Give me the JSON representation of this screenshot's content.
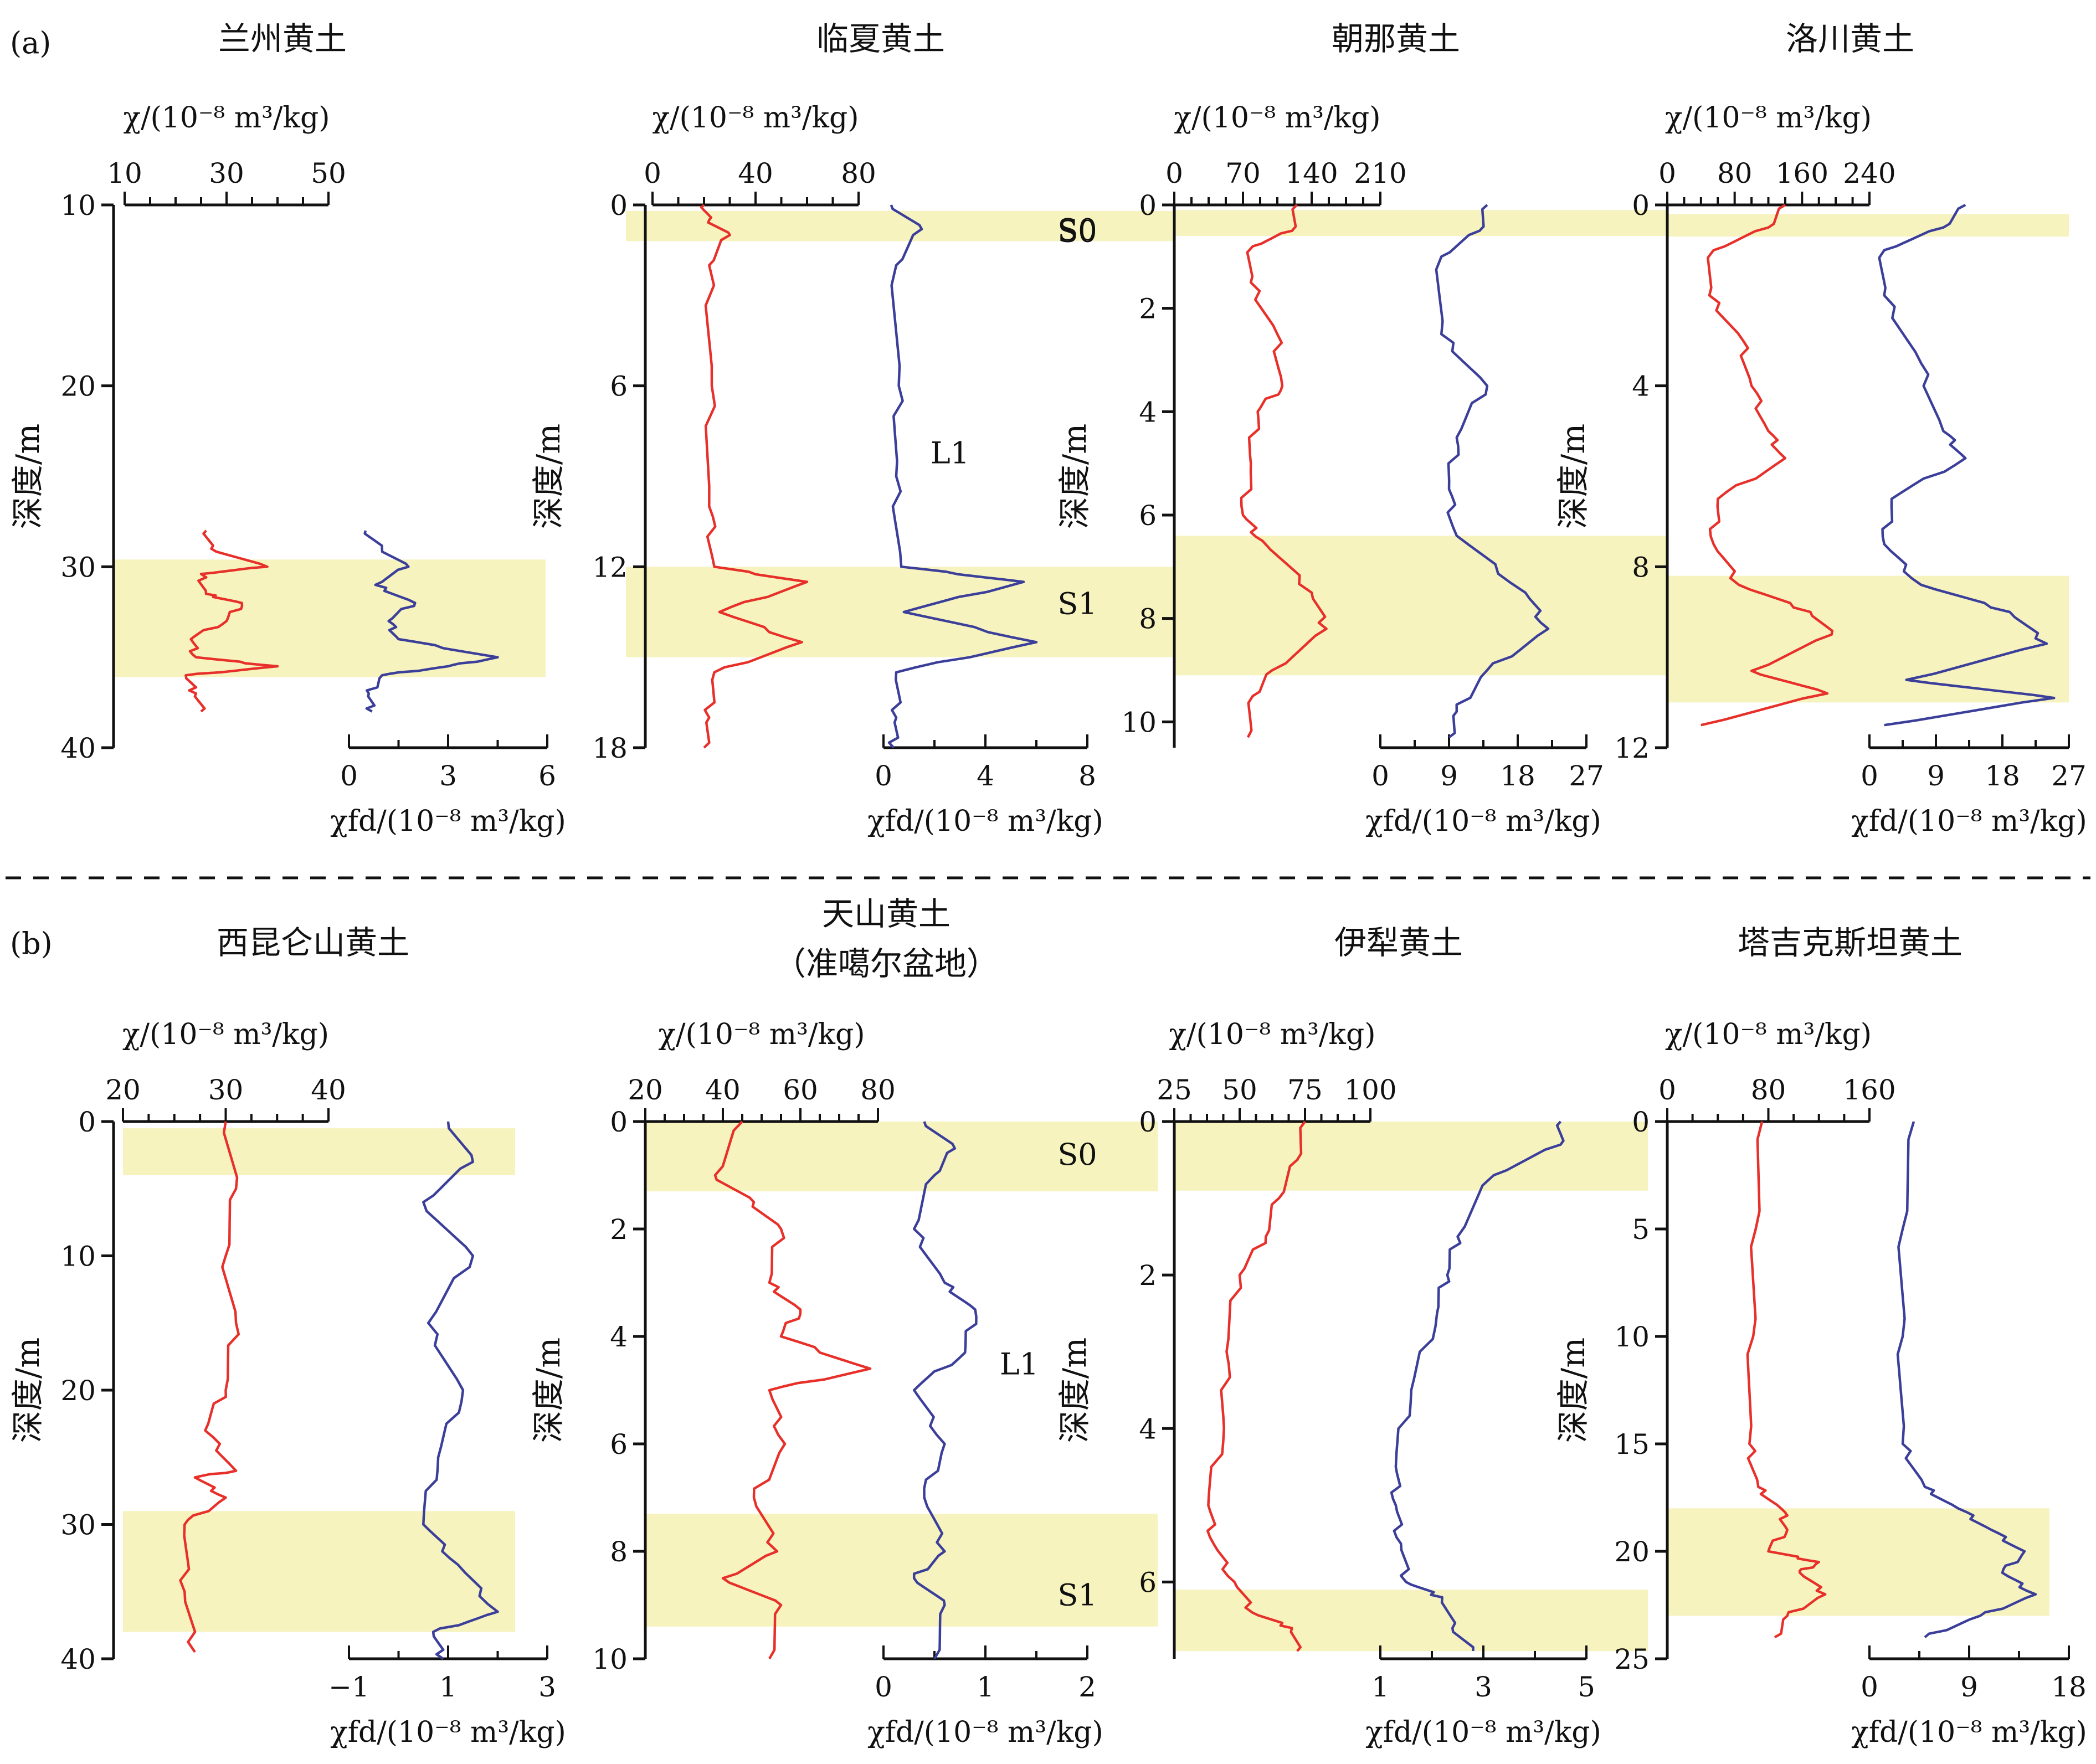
{
  "panel_labels": [
    "(a)",
    "(b)"
  ],
  "layer_labels": [
    "S0",
    "S1",
    "L1"
  ],
  "axis_labels": {
    "chi": "χ/(10⁻⁸ m³/kg)",
    "chifd": "χfd/(10⁻⁸ m³/kg)",
    "depth": "深度/m"
  },
  "colors": {
    "chi": "#e8302a",
    "chifd": "#3b3f9a",
    "band": "#f6f3bf",
    "axis": "#111111"
  },
  "chart_data": [
    {
      "type": "line",
      "title": "兰州黄土",
      "depth_range": [
        10,
        40
      ],
      "depth_ticks": [
        10,
        20,
        30,
        40
      ],
      "chi_range": [
        10,
        50
      ],
      "chi_ticks": [
        10,
        30,
        50
      ],
      "chifd_range": [
        0,
        6
      ],
      "chifd_ticks": [
        0,
        3,
        6
      ],
      "bands": [
        [
          29.6,
          36.1
        ]
      ],
      "chi_profile": [
        [
          28.0,
          26
        ],
        [
          29.0,
          27
        ],
        [
          30.0,
          38
        ],
        [
          30.4,
          25
        ],
        [
          31.5,
          26
        ],
        [
          32.0,
          33
        ],
        [
          33.0,
          30
        ],
        [
          34.0,
          23
        ],
        [
          35.0,
          24
        ],
        [
          35.5,
          40
        ],
        [
          36.0,
          22
        ],
        [
          37.0,
          24
        ],
        [
          38.0,
          25
        ]
      ],
      "chifd_profile": [
        [
          28.0,
          0.5
        ],
        [
          29.0,
          1.0
        ],
        [
          30.0,
          1.8
        ],
        [
          31.0,
          0.8
        ],
        [
          32.0,
          2.0
        ],
        [
          33.0,
          1.2
        ],
        [
          34.0,
          1.5
        ],
        [
          35.0,
          4.5
        ],
        [
          35.5,
          3.0
        ],
        [
          36.0,
          1.0
        ],
        [
          37.0,
          0.6
        ],
        [
          38.0,
          0.7
        ]
      ],
      "layers": []
    },
    {
      "type": "line",
      "title": "临夏黄土",
      "depth_range": [
        0,
        18
      ],
      "depth_ticks": [
        0,
        6,
        12,
        18
      ],
      "chi_range": [
        0,
        80
      ],
      "chi_ticks": [
        0,
        40,
        80
      ],
      "chifd_range": [
        0,
        8
      ],
      "chifd_ticks": [
        0,
        4,
        8
      ],
      "bands": [
        [
          0.2,
          1.2
        ],
        [
          12.0,
          15.0
        ]
      ],
      "chi_profile": [
        [
          0.0,
          20
        ],
        [
          0.5,
          22
        ],
        [
          1.0,
          30
        ],
        [
          2.0,
          22
        ],
        [
          6.0,
          23
        ],
        [
          10.0,
          22
        ],
        [
          12.0,
          24
        ],
        [
          12.5,
          60
        ],
        [
          13.5,
          26
        ],
        [
          14.5,
          58
        ],
        [
          15.5,
          24
        ],
        [
          17.0,
          22
        ],
        [
          18.0,
          20
        ]
      ],
      "chifd_profile": [
        [
          0.0,
          0.3
        ],
        [
          0.8,
          1.5
        ],
        [
          2.0,
          0.5
        ],
        [
          6.0,
          0.6
        ],
        [
          9.0,
          0.5
        ],
        [
          12.0,
          0.7
        ],
        [
          12.5,
          5.5
        ],
        [
          13.5,
          0.8
        ],
        [
          14.5,
          6.0
        ],
        [
          15.5,
          0.5
        ],
        [
          17.0,
          0.5
        ],
        [
          18.0,
          0.4
        ]
      ],
      "layers": [
        {
          "text": "S0",
          "depth": 0.8
        },
        {
          "text": "L1",
          "depth": 8.2
        },
        {
          "text": "S1",
          "depth": 13.2
        }
      ]
    },
    {
      "type": "line",
      "title": "朝那黄土",
      "depth_range": [
        0,
        10.5
      ],
      "depth_ticks": [
        0,
        2,
        4,
        6,
        8,
        10
      ],
      "chi_range": [
        0,
        210
      ],
      "chi_ticks": [
        0,
        70,
        140,
        210
      ],
      "chifd_range": [
        0,
        27
      ],
      "chifd_ticks": [
        0,
        9,
        18,
        27
      ],
      "bands": [
        [
          0.1,
          0.6
        ],
        [
          6.4,
          9.1
        ]
      ],
      "chi_profile": [
        [
          0.0,
          125
        ],
        [
          0.5,
          120
        ],
        [
          0.8,
          80
        ],
        [
          1.5,
          78
        ],
        [
          2.5,
          105
        ],
        [
          3.5,
          110
        ],
        [
          4.0,
          85
        ],
        [
          5.0,
          78
        ],
        [
          6.0,
          70
        ],
        [
          6.5,
          90
        ],
        [
          7.5,
          140
        ],
        [
          8.2,
          155
        ],
        [
          9.0,
          100
        ],
        [
          9.5,
          80
        ],
        [
          10.3,
          75
        ]
      ],
      "chifd_profile": [
        [
          0.0,
          14
        ],
        [
          0.5,
          13
        ],
        [
          1.0,
          8
        ],
        [
          2.5,
          8
        ],
        [
          3.5,
          14
        ],
        [
          4.5,
          10
        ],
        [
          5.5,
          9
        ],
        [
          6.4,
          10
        ],
        [
          7.5,
          19
        ],
        [
          8.2,
          22
        ],
        [
          9.0,
          14
        ],
        [
          9.8,
          10
        ],
        [
          10.3,
          9
        ]
      ],
      "layers": [
        {
          "text": "S0",
          "depth": 0.5
        }
      ]
    },
    {
      "type": "line",
      "title": "洛川黄土",
      "depth_range": [
        0,
        12
      ],
      "depth_ticks": [
        0,
        4,
        8,
        12
      ],
      "chi_range": [
        0,
        240
      ],
      "chi_ticks": [
        0,
        80,
        160,
        240
      ],
      "chifd_range": [
        0,
        27
      ],
      "chifd_ticks": [
        0,
        9,
        18,
        27
      ],
      "bands": [
        [
          0.2,
          0.7
        ],
        [
          8.2,
          11.0
        ]
      ],
      "chi_profile": [
        [
          0.0,
          140
        ],
        [
          0.5,
          120
        ],
        [
          1.0,
          55
        ],
        [
          2.0,
          50
        ],
        [
          3.0,
          90
        ],
        [
          4.0,
          100
        ],
        [
          5.0,
          120
        ],
        [
          5.6,
          140
        ],
        [
          6.5,
          60
        ],
        [
          7.5,
          55
        ],
        [
          8.4,
          85
        ],
        [
          9.0,
          170
        ],
        [
          9.5,
          195
        ],
        [
          10.3,
          100
        ],
        [
          10.8,
          190
        ],
        [
          11.5,
          40
        ]
      ],
      "chifd_profile": [
        [
          0.0,
          13
        ],
        [
          0.5,
          10
        ],
        [
          1.0,
          2
        ],
        [
          2.0,
          2
        ],
        [
          3.5,
          7
        ],
        [
          5.0,
          10
        ],
        [
          5.6,
          13
        ],
        [
          6.5,
          3
        ],
        [
          7.5,
          2
        ],
        [
          8.4,
          7
        ],
        [
          9.0,
          19
        ],
        [
          9.7,
          24
        ],
        [
          10.5,
          5
        ],
        [
          10.9,
          25
        ],
        [
          11.5,
          2
        ]
      ],
      "layers": []
    },
    {
      "type": "line",
      "title": "西昆仑山黄土",
      "depth_range": [
        0,
        40
      ],
      "depth_ticks": [
        0,
        10,
        20,
        30,
        40
      ],
      "chi_range": [
        20,
        40
      ],
      "chi_ticks": [
        20,
        30,
        40
      ],
      "chifd_range": [
        -1,
        3
      ],
      "chifd_ticks": [
        -1,
        1,
        3
      ],
      "bands": [
        [
          0.5,
          4.0
        ],
        [
          29.0,
          38.0
        ]
      ],
      "chi_profile": [
        [
          0.0,
          30
        ],
        [
          5.0,
          31
        ],
        [
          10.0,
          30
        ],
        [
          15.0,
          31
        ],
        [
          20.0,
          30
        ],
        [
          23.0,
          28
        ],
        [
          26.0,
          31
        ],
        [
          26.5,
          27
        ],
        [
          28.0,
          30
        ],
        [
          30.0,
          26
        ],
        [
          35.0,
          26
        ],
        [
          39.5,
          27
        ]
      ],
      "chifd_profile": [
        [
          0.0,
          1.0
        ],
        [
          3.0,
          1.5
        ],
        [
          6.0,
          0.5
        ],
        [
          10.0,
          1.5
        ],
        [
          15.0,
          0.6
        ],
        [
          20.0,
          1.3
        ],
        [
          25.0,
          0.8
        ],
        [
          30.0,
          0.5
        ],
        [
          33.0,
          1.2
        ],
        [
          36.5,
          2.0
        ],
        [
          38.0,
          0.7
        ],
        [
          40.0,
          0.9
        ]
      ],
      "layers": []
    },
    {
      "type": "line",
      "title": "天山黄土",
      "subtitle": "（准噶尔盆地）",
      "depth_range": [
        0,
        10
      ],
      "depth_ticks": [
        0,
        2,
        4,
        6,
        8,
        10
      ],
      "chi_range": [
        20,
        80
      ],
      "chi_ticks": [
        20,
        40,
        60,
        80
      ],
      "chifd_range": [
        0,
        2
      ],
      "chifd_ticks": [
        0,
        1,
        2
      ],
      "bands": [
        [
          0.0,
          1.3
        ],
        [
          7.3,
          9.4
        ]
      ],
      "chi_profile": [
        [
          0.0,
          45
        ],
        [
          1.0,
          38
        ],
        [
          1.5,
          48
        ],
        [
          2.0,
          55
        ],
        [
          3.0,
          52
        ],
        [
          3.5,
          60
        ],
        [
          4.0,
          55
        ],
        [
          4.6,
          78
        ],
        [
          5.0,
          52
        ],
        [
          6.0,
          56
        ],
        [
          7.0,
          48
        ],
        [
          8.0,
          54
        ],
        [
          8.5,
          40
        ],
        [
          9.0,
          55
        ],
        [
          10.0,
          52
        ]
      ],
      "chifd_profile": [
        [
          0.0,
          0.4
        ],
        [
          0.5,
          0.7
        ],
        [
          1.0,
          0.5
        ],
        [
          2.0,
          0.3
        ],
        [
          3.0,
          0.6
        ],
        [
          3.5,
          0.9
        ],
        [
          4.3,
          0.8
        ],
        [
          5.0,
          0.3
        ],
        [
          6.0,
          0.6
        ],
        [
          7.0,
          0.4
        ],
        [
          8.0,
          0.6
        ],
        [
          8.5,
          0.3
        ],
        [
          9.0,
          0.6
        ],
        [
          10.0,
          0.5
        ]
      ],
      "layers": [
        {
          "text": "S0",
          "depth": 0.6
        },
        {
          "text": "L1",
          "depth": 4.5
        },
        {
          "text": "S1",
          "depth": 8.8
        }
      ]
    },
    {
      "type": "line",
      "title": "伊犁黄土",
      "depth_range": [
        0,
        7
      ],
      "depth_ticks": [
        0,
        2,
        4,
        6
      ],
      "chi_range": [
        25,
        100
      ],
      "chi_ticks": [
        25,
        50,
        75,
        100
      ],
      "chifd_range": [
        1,
        5
      ],
      "chifd_ticks": [
        1,
        3,
        5
      ],
      "bands": [
        [
          0.0,
          0.9
        ],
        [
          6.1,
          6.9
        ]
      ],
      "chi_profile": [
        [
          0.0,
          75
        ],
        [
          0.5,
          72
        ],
        [
          1.0,
          65
        ],
        [
          1.5,
          60
        ],
        [
          2.0,
          50
        ],
        [
          3.0,
          45
        ],
        [
          4.0,
          44
        ],
        [
          5.0,
          38
        ],
        [
          5.5,
          40
        ],
        [
          6.0,
          48
        ],
        [
          6.4,
          55
        ],
        [
          6.6,
          70
        ],
        [
          6.9,
          72
        ]
      ],
      "chifd_profile": [
        [
          0.0,
          4.5
        ],
        [
          0.3,
          4.5
        ],
        [
          0.7,
          3.2
        ],
        [
          1.5,
          2.5
        ],
        [
          2.0,
          2.3
        ],
        [
          2.5,
          2.1
        ],
        [
          3.5,
          1.6
        ],
        [
          4.5,
          1.3
        ],
        [
          5.0,
          1.3
        ],
        [
          5.5,
          1.4
        ],
        [
          6.0,
          1.5
        ],
        [
          6.2,
          2.2
        ],
        [
          6.6,
          2.4
        ],
        [
          6.9,
          2.8
        ]
      ],
      "layers": []
    },
    {
      "type": "line",
      "title": "塔吉克斯坦黄土",
      "depth_range": [
        0,
        25
      ],
      "depth_ticks": [
        0,
        5,
        10,
        15,
        20,
        25
      ],
      "chi_range": [
        0,
        160
      ],
      "chi_ticks": [
        0,
        80,
        160
      ],
      "chifd_range": [
        0,
        18
      ],
      "chifd_ticks": [
        0,
        9,
        18
      ],
      "bands": [
        [
          18.0,
          23.0
        ]
      ],
      "chi_profile": [
        [
          0.0,
          75
        ],
        [
          5.0,
          70
        ],
        [
          10.0,
          68
        ],
        [
          15.0,
          65
        ],
        [
          17.0,
          72
        ],
        [
          18.0,
          90
        ],
        [
          19.0,
          95
        ],
        [
          20.0,
          80
        ],
        [
          20.5,
          120
        ],
        [
          21.0,
          105
        ],
        [
          22.0,
          125
        ],
        [
          23.0,
          95
        ],
        [
          24.0,
          85
        ]
      ],
      "chifd_profile": [
        [
          0.0,
          4
        ],
        [
          5.0,
          3
        ],
        [
          10.0,
          3
        ],
        [
          15.0,
          3
        ],
        [
          17.0,
          5
        ],
        [
          18.0,
          8
        ],
        [
          19.0,
          11
        ],
        [
          20.0,
          14
        ],
        [
          21.0,
          12
        ],
        [
          22.0,
          15
        ],
        [
          23.0,
          10
        ],
        [
          24.0,
          5
        ]
      ],
      "layers": []
    }
  ]
}
